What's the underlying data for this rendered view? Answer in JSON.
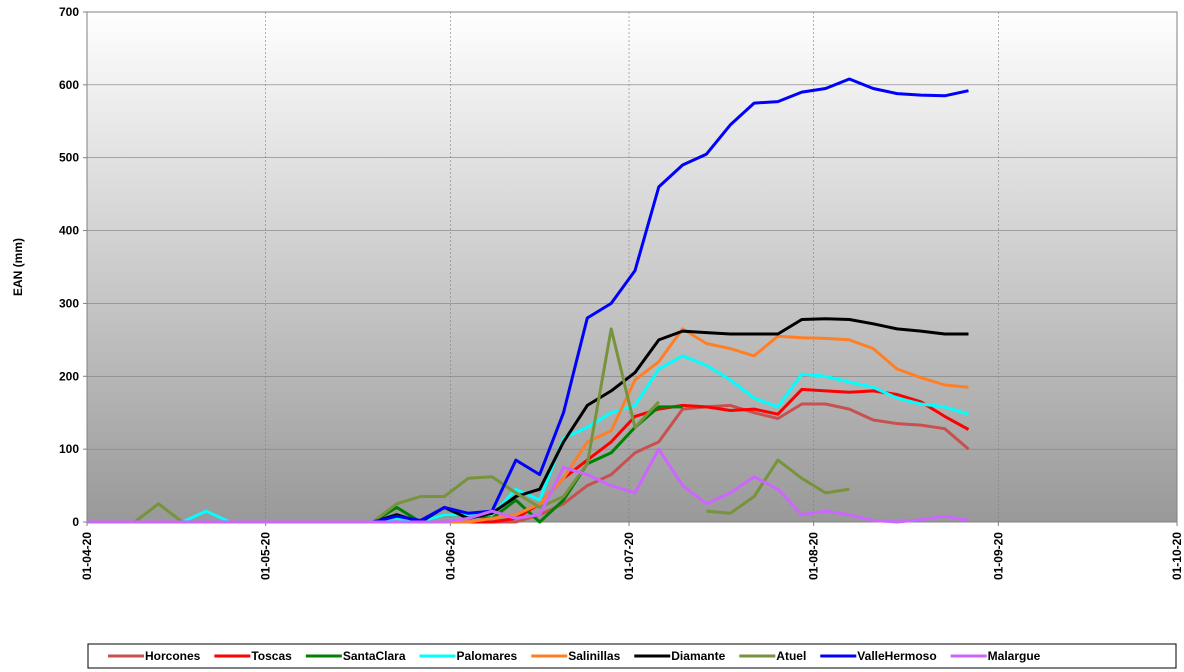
{
  "chart_data": {
    "type": "line",
    "y_label": "EAN (mm)",
    "x": [
      "2020-04-01",
      "2020-04-05",
      "2020-04-09",
      "2020-04-13",
      "2020-04-17",
      "2020-04-21",
      "2020-04-25",
      "2020-04-29",
      "2020-05-03",
      "2020-05-07",
      "2020-05-11",
      "2020-05-15",
      "2020-05-19",
      "2020-05-23",
      "2020-05-27",
      "2020-05-31",
      "2020-06-04",
      "2020-06-08",
      "2020-06-12",
      "2020-06-16",
      "2020-06-20",
      "2020-06-24",
      "2020-06-28",
      "2020-07-02",
      "2020-07-06",
      "2020-07-10",
      "2020-07-14",
      "2020-07-18",
      "2020-07-22",
      "2020-07-26",
      "2020-07-30",
      "2020-08-03",
      "2020-08-07",
      "2020-08-11",
      "2020-08-15",
      "2020-08-19",
      "2020-08-23",
      "2020-08-27"
    ],
    "xlim": [
      "2020-04-01",
      "2020-10-01"
    ],
    "xticks": [
      {
        "value": "2020-04-01",
        "label": "01-04-20"
      },
      {
        "value": "2020-05-01",
        "label": "01-05-20"
      },
      {
        "value": "2020-06-01",
        "label": "01-06-20"
      },
      {
        "value": "2020-07-01",
        "label": "01-07-20"
      },
      {
        "value": "2020-08-01",
        "label": "01-08-20"
      },
      {
        "value": "2020-09-01",
        "label": "01-09-20"
      },
      {
        "value": "2020-10-01",
        "label": "01-10-20"
      }
    ],
    "ylim": [
      0,
      700
    ],
    "yticks": [
      0,
      100,
      200,
      300,
      400,
      500,
      600,
      700
    ],
    "grid": true,
    "legend": "bottom",
    "series": [
      {
        "name": "Horcones",
        "color": "#c8504f",
        "values": [
          0,
          0,
          0,
          0,
          0,
          0,
          0,
          0,
          0,
          0,
          0,
          0,
          0,
          0,
          0,
          0,
          0,
          0,
          0,
          10,
          25,
          50,
          65,
          95,
          110,
          155,
          158,
          160,
          150,
          142,
          162,
          162,
          155,
          140,
          135,
          133,
          128,
          100
        ]
      },
      {
        "name": "Toscas",
        "color": "#ff0000",
        "values": [
          0,
          0,
          0,
          0,
          0,
          0,
          0,
          0,
          0,
          0,
          0,
          0,
          0,
          0,
          0,
          0,
          0,
          0,
          5,
          25,
          60,
          85,
          110,
          145,
          155,
          160,
          158,
          153,
          155,
          148,
          182,
          180,
          178,
          180,
          175,
          165,
          145,
          127
        ]
      },
      {
        "name": "SantaClara",
        "color": "#008000",
        "values": [
          0,
          0,
          0,
          0,
          0,
          0,
          0,
          0,
          0,
          0,
          0,
          0,
          0,
          20,
          0,
          10,
          10,
          5,
          30,
          0,
          30,
          80,
          95,
          130,
          158,
          158,
          null,
          null,
          null,
          null,
          null,
          null,
          null,
          null,
          null,
          null,
          null,
          null
        ]
      },
      {
        "name": "Palomares",
        "color": "#00ffff",
        "values": [
          0,
          0,
          0,
          0,
          0,
          15,
          0,
          0,
          0,
          0,
          0,
          0,
          0,
          5,
          0,
          10,
          10,
          10,
          45,
          30,
          115,
          130,
          150,
          160,
          210,
          228,
          215,
          195,
          170,
          158,
          203,
          200,
          192,
          185,
          170,
          162,
          158,
          148
        ]
      },
      {
        "name": "Salinillas",
        "color": "#ff7f27",
        "values": [
          0,
          0,
          0,
          0,
          0,
          0,
          0,
          0,
          0,
          0,
          0,
          0,
          0,
          0,
          0,
          0,
          0,
          5,
          10,
          25,
          60,
          110,
          125,
          195,
          220,
          265,
          245,
          238,
          228,
          255,
          253,
          252,
          250,
          238,
          210,
          198,
          188,
          185
        ]
      },
      {
        "name": "Diamante",
        "color": "#000000",
        "values": [
          0,
          0,
          0,
          0,
          0,
          0,
          0,
          0,
          0,
          0,
          0,
          0,
          0,
          10,
          0,
          20,
          5,
          12,
          35,
          45,
          110,
          160,
          180,
          205,
          250,
          262,
          260,
          258,
          258,
          258,
          278,
          279,
          278,
          272,
          265,
          262,
          258,
          258
        ]
      },
      {
        "name": "Atuel",
        "color": "#77933c",
        "values": [
          0,
          0,
          0,
          25,
          0,
          0,
          0,
          0,
          0,
          0,
          0,
          0,
          0,
          25,
          35,
          35,
          60,
          62,
          40,
          20,
          35,
          80,
          265,
          130,
          165,
          null,
          15,
          12,
          35,
          85,
          60,
          40,
          45,
          null,
          null,
          null,
          null,
          null
        ]
      },
      {
        "name": "ValleHermoso",
        "color": "#0000ff",
        "values": [
          0,
          0,
          0,
          0,
          0,
          0,
          0,
          0,
          0,
          0,
          0,
          0,
          0,
          8,
          2,
          20,
          12,
          15,
          85,
          65,
          150,
          280,
          300,
          345,
          460,
          490,
          505,
          545,
          575,
          577,
          590,
          595,
          608,
          595,
          588,
          586,
          585,
          592
        ]
      },
      {
        "name": "Malargue",
        "color": "#cc66ff",
        "values": [
          0,
          0,
          0,
          0,
          0,
          0,
          0,
          0,
          0,
          0,
          0,
          0,
          0,
          0,
          0,
          0,
          5,
          15,
          5,
          10,
          75,
          65,
          50,
          40,
          100,
          50,
          25,
          40,
          62,
          45,
          10,
          15,
          10,
          2,
          0,
          3,
          8,
          2
        ]
      }
    ]
  }
}
